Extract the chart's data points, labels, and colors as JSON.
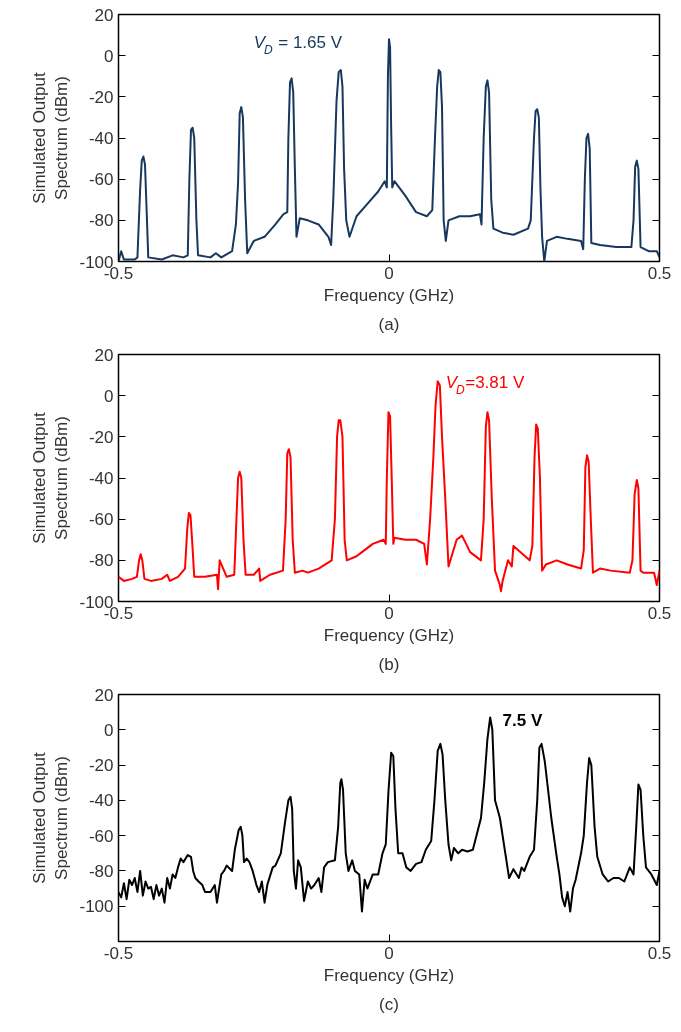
{
  "chart_data": [
    {
      "type": "line",
      "title": "(a)",
      "xlabel": "Frequency (GHz)",
      "ylabel": "Simulated Output Spectrum (dBm)",
      "annotations": [
        "V$_{D}$ = 1.65 V"
      ],
      "xlim": [
        -0.5,
        0.5
      ],
      "ylim": [
        -100,
        20
      ],
      "xticks": [
        -0.5,
        0,
        0.5
      ],
      "yticks": [
        -100,
        -80,
        -60,
        -40,
        -20,
        0,
        20
      ],
      "grid": false,
      "marker": "none",
      "line_style": "solid",
      "series": [
        {
          "color": "#17375e",
          "x": [
            -0.5,
            -0.495,
            -0.49,
            -0.47,
            -0.465,
            -0.46,
            -0.457,
            -0.454,
            -0.451,
            -0.448,
            -0.445,
            -0.42,
            -0.4,
            -0.38,
            -0.372,
            -0.369,
            -0.366,
            -0.363,
            -0.36,
            -0.356,
            -0.353,
            -0.33,
            -0.32,
            -0.31,
            -0.29,
            -0.283,
            -0.279,
            -0.276,
            -0.273,
            -0.27,
            -0.266,
            -0.262,
            -0.25,
            -0.23,
            -0.21,
            -0.195,
            -0.188,
            -0.186,
            -0.183,
            -0.18,
            -0.177,
            -0.174,
            -0.171,
            -0.165,
            -0.15,
            -0.13,
            -0.112,
            -0.107,
            -0.103,
            -0.097,
            -0.093,
            -0.089,
            -0.086,
            -0.083,
            -0.079,
            -0.073,
            -0.06,
            -0.04,
            -0.02,
            -0.008,
            -0.004,
            -0.002,
            0.0,
            0.002,
            0.004,
            0.006,
            0.01,
            0.03,
            0.05,
            0.07,
            0.08,
            0.085,
            0.089,
            0.092,
            0.095,
            0.098,
            0.101,
            0.105,
            0.11,
            0.13,
            0.15,
            0.168,
            0.171,
            0.175,
            0.179,
            0.182,
            0.185,
            0.189,
            0.193,
            0.21,
            0.23,
            0.257,
            0.262,
            0.268,
            0.271,
            0.274,
            0.277,
            0.28,
            0.283,
            0.287,
            0.292,
            0.31,
            0.33,
            0.355,
            0.359,
            0.362,
            0.365,
            0.368,
            0.371,
            0.374,
            0.39,
            0.42,
            0.448,
            0.452,
            0.455,
            0.458,
            0.461,
            0.465,
            0.48,
            0.495,
            0.5
          ],
          "values": [
            -100,
            -95,
            -99,
            -99,
            -98,
            -65,
            -51,
            -49,
            -53,
            -75,
            -98,
            -99,
            -97,
            -98,
            -97,
            -60,
            -36,
            -35,
            -40,
            -80,
            -97,
            -98,
            -96,
            -98,
            -95,
            -82,
            -62,
            -28,
            -25,
            -30,
            -70,
            -96,
            -90,
            -88,
            -82,
            -77,
            -76,
            -40,
            -13,
            -11,
            -18,
            -55,
            -88,
            -79,
            -80,
            -82,
            -88,
            -92,
            -70,
            -22,
            -8,
            -7,
            -15,
            -55,
            -80,
            -88,
            -78,
            -72,
            -66,
            -61,
            -64,
            -10,
            8,
            4,
            -35,
            -64,
            -61,
            -68,
            -76,
            -78,
            -75,
            -40,
            -15,
            -7,
            -8,
            -25,
            -80,
            -90,
            -80,
            -78,
            -78,
            -77,
            -82,
            -40,
            -15,
            -12,
            -18,
            -70,
            -84,
            -86,
            -87,
            -84,
            -80,
            -40,
            -27,
            -26,
            -30,
            -65,
            -88,
            -100,
            -90,
            -88,
            -89,
            -90,
            -94,
            -60,
            -40,
            -38,
            -45,
            -91,
            -92,
            -93,
            -93,
            -80,
            -54,
            -51,
            -55,
            -93,
            -95,
            -95,
            -98
          ]
        }
      ]
    },
    {
      "type": "line",
      "title": "(b)",
      "xlabel": "Frequency (GHz)",
      "ylabel": "Simulated Output Spectrum (dBm)",
      "annotations": [
        "V$_{D}$=3.81 V"
      ],
      "xlim": [
        -0.5,
        0.5
      ],
      "ylim": [
        -100,
        20
      ],
      "xticks": [
        -0.5,
        0,
        0.5
      ],
      "yticks": [
        -100,
        -80,
        -60,
        -40,
        -20,
        0,
        20
      ],
      "grid": false,
      "marker": "none",
      "line_style": "solid",
      "series": [
        {
          "color": "#ff0000",
          "x": [
            -0.5,
            -0.49,
            -0.475,
            -0.466,
            -0.462,
            -0.459,
            -0.456,
            -0.452,
            -0.44,
            -0.42,
            -0.41,
            -0.405,
            -0.39,
            -0.377,
            -0.373,
            -0.37,
            -0.367,
            -0.364,
            -0.36,
            -0.356,
            -0.34,
            -0.318,
            -0.316,
            -0.313,
            -0.3,
            -0.286,
            -0.282,
            -0.279,
            -0.276,
            -0.273,
            -0.269,
            -0.265,
            -0.25,
            -0.24,
            -0.238,
            -0.22,
            -0.196,
            -0.191,
            -0.188,
            -0.185,
            -0.182,
            -0.178,
            -0.174,
            -0.16,
            -0.15,
            -0.13,
            -0.106,
            -0.1,
            -0.096,
            -0.093,
            -0.09,
            -0.086,
            -0.082,
            -0.078,
            -0.06,
            -0.05,
            -0.03,
            -0.01,
            -0.006,
            -0.004,
            -0.001,
            0.002,
            0.005,
            0.008,
            0.01,
            0.03,
            0.05,
            0.065,
            0.07,
            0.076,
            0.082,
            0.086,
            0.09,
            0.094,
            0.098,
            0.104,
            0.11,
            0.125,
            0.135,
            0.15,
            0.17,
            0.175,
            0.179,
            0.182,
            0.185,
            0.19,
            0.196,
            0.205,
            0.207,
            0.21,
            0.22,
            0.227,
            0.23,
            0.26,
            0.265,
            0.269,
            0.272,
            0.275,
            0.279,
            0.283,
            0.29,
            0.31,
            0.33,
            0.355,
            0.36,
            0.363,
            0.366,
            0.369,
            0.373,
            0.377,
            0.39,
            0.41,
            0.445,
            0.45,
            0.454,
            0.458,
            0.461,
            0.465,
            0.47,
            0.49,
            0.495,
            0.5
          ],
          "values": [
            -88,
            -90,
            -89,
            -88,
            -80,
            -77,
            -80,
            -89,
            -90,
            -89,
            -87,
            -90,
            -88,
            -84,
            -65,
            -57,
            -58,
            -70,
            -88,
            -88,
            -88,
            -87,
            -94,
            -80,
            -88,
            -87,
            -60,
            -40,
            -37,
            -40,
            -70,
            -87,
            -87,
            -84,
            -90,
            -87,
            -85,
            -60,
            -28,
            -26,
            -30,
            -70,
            -86,
            -85,
            -86,
            -84,
            -80,
            -60,
            -20,
            -12,
            -12,
            -20,
            -70,
            -80,
            -78,
            -76,
            -72,
            -70,
            -72,
            -40,
            -8,
            -10,
            -40,
            -72,
            -69,
            -70,
            -70,
            -72,
            -82,
            -60,
            -30,
            -5,
            7,
            5,
            -20,
            -50,
            -83,
            -70,
            -68,
            -76,
            -80,
            -60,
            -15,
            -8,
            -12,
            -50,
            -85,
            -92,
            -95,
            -90,
            -80,
            -83,
            -73,
            -80,
            -73,
            -30,
            -14,
            -16,
            -40,
            -85,
            -82,
            -80,
            -82,
            -84,
            -75,
            -35,
            -29,
            -32,
            -60,
            -86,
            -84,
            -85,
            -86,
            -80,
            -48,
            -41,
            -45,
            -85,
            -86,
            -86,
            -92,
            -85
          ]
        }
      ]
    },
    {
      "type": "line",
      "title": "(c)",
      "xlabel": "Frequency (GHz)",
      "ylabel": "Simulated Output Spectrum (dBm)",
      "annotations": [
        "7.5 V"
      ],
      "xlim": [
        -0.5,
        0.5
      ],
      "ylim": [
        -120,
        20
      ],
      "xticks": [
        -0.5,
        0,
        0.5
      ],
      "yticks": [
        -100,
        -80,
        -60,
        -40,
        -20,
        0,
        20
      ],
      "grid": false,
      "marker": "none",
      "line_style": "solid",
      "series": [
        {
          "color": "#000000",
          "x": [
            -0.5,
            -0.495,
            -0.49,
            -0.485,
            -0.48,
            -0.475,
            -0.47,
            -0.465,
            -0.46,
            -0.455,
            -0.45,
            -0.445,
            -0.44,
            -0.435,
            -0.43,
            -0.425,
            -0.42,
            -0.415,
            -0.41,
            -0.405,
            -0.4,
            -0.395,
            -0.39,
            -0.385,
            -0.38,
            -0.372,
            -0.366,
            -0.362,
            -0.358,
            -0.352,
            -0.345,
            -0.34,
            -0.33,
            -0.322,
            -0.318,
            -0.31,
            -0.305,
            -0.3,
            -0.29,
            -0.285,
            -0.278,
            -0.274,
            -0.271,
            -0.268,
            -0.263,
            -0.258,
            -0.252,
            -0.245,
            -0.24,
            -0.235,
            -0.23,
            -0.225,
            -0.215,
            -0.21,
            -0.2,
            -0.192,
            -0.186,
            -0.182,
            -0.179,
            -0.176,
            -0.172,
            -0.168,
            -0.163,
            -0.157,
            -0.15,
            -0.144,
            -0.138,
            -0.13,
            -0.125,
            -0.12,
            -0.113,
            -0.1,
            -0.094,
            -0.09,
            -0.088,
            -0.085,
            -0.08,
            -0.075,
            -0.068,
            -0.063,
            -0.055,
            -0.05,
            -0.045,
            -0.04,
            -0.03,
            -0.02,
            -0.012,
            -0.006,
            -0.001,
            0.004,
            0.008,
            0.012,
            0.017,
            0.025,
            0.032,
            0.04,
            0.05,
            0.06,
            0.068,
            0.078,
            0.084,
            0.09,
            0.095,
            0.099,
            0.104,
            0.11,
            0.115,
            0.12,
            0.128,
            0.135,
            0.145,
            0.155,
            0.16,
            0.17,
            0.176,
            0.182,
            0.187,
            0.191,
            0.196,
            0.205,
            0.215,
            0.222,
            0.23,
            0.24,
            0.245,
            0.25,
            0.26,
            0.268,
            0.274,
            0.278,
            0.282,
            0.288,
            0.3,
            0.31,
            0.315,
            0.32,
            0.325,
            0.33,
            0.335,
            0.34,
            0.345,
            0.355,
            0.36,
            0.366,
            0.37,
            0.374,
            0.38,
            0.385,
            0.395,
            0.405,
            0.415,
            0.425,
            0.435,
            0.445,
            0.452,
            0.457,
            0.461,
            0.465,
            0.47,
            0.475,
            0.485,
            0.495,
            0.5
          ],
          "values": [
            -92,
            -95,
            -87,
            -96,
            -85,
            -88,
            -84,
            -92,
            -80,
            -94,
            -86,
            -90,
            -89,
            -96,
            -88,
            -94,
            -90,
            -98,
            -84,
            -90,
            -82,
            -84,
            -78,
            -73,
            -75,
            -71,
            -72,
            -80,
            -84,
            -86,
            -88,
            -92,
            -92,
            -88,
            -98,
            -82,
            -80,
            -77,
            -80,
            -68,
            -57,
            -55,
            -60,
            -75,
            -73,
            -75,
            -80,
            -88,
            -92,
            -86,
            -98,
            -88,
            -78,
            -77,
            -70,
            -52,
            -40,
            -38,
            -45,
            -80,
            -90,
            -74,
            -78,
            -97,
            -86,
            -90,
            -88,
            -84,
            -92,
            -78,
            -75,
            -74,
            -55,
            -30,
            -28,
            -34,
            -70,
            -80,
            -74,
            -80,
            -82,
            -103,
            -85,
            -90,
            -82,
            -82,
            -70,
            -65,
            -35,
            -13,
            -15,
            -45,
            -70,
            -70,
            -78,
            -80,
            -76,
            -75,
            -68,
            -63,
            -40,
            -12,
            -8,
            -14,
            -40,
            -65,
            -74,
            -67,
            -70,
            -68,
            -69,
            -68,
            -62,
            -50,
            -30,
            -5,
            7,
            0,
            -40,
            -50,
            -70,
            -84,
            -79,
            -84,
            -78,
            -80,
            -72,
            -68,
            -40,
            -10,
            -8,
            -18,
            -50,
            -72,
            -82,
            -95,
            -100,
            -92,
            -103,
            -90,
            -85,
            -70,
            -60,
            -30,
            -16,
            -20,
            -55,
            -72,
            -82,
            -86,
            -84,
            -84,
            -86,
            -78,
            -82,
            -55,
            -31,
            -34,
            -60,
            -78,
            -82,
            -88,
            -80
          ]
        }
      ]
    }
  ]
}
